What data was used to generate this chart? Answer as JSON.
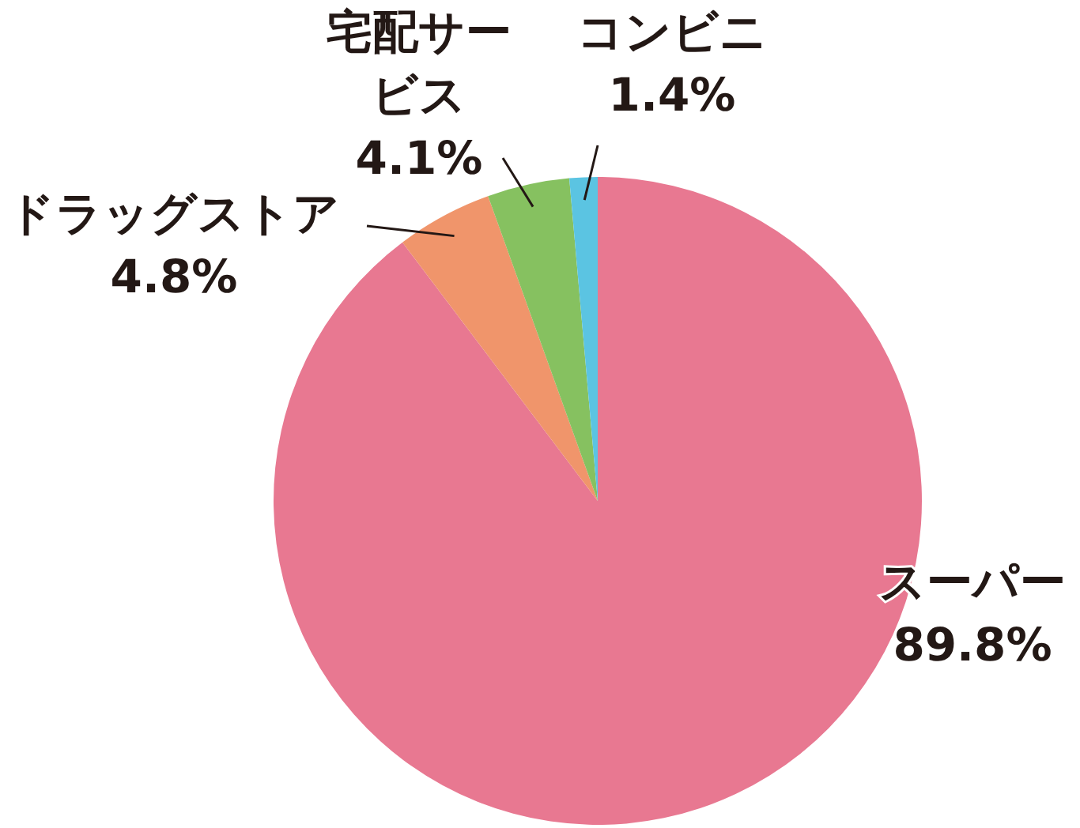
{
  "chart_data": {
    "type": "pie",
    "categories": [
      "スーパー",
      "ドラッグストア",
      "宅配サービス",
      "コンビニ"
    ],
    "values": [
      89.8,
      4.8,
      4.1,
      1.4
    ],
    "value_labels": [
      "89.8%",
      "4.8%",
      "4.1%",
      "1.4%"
    ],
    "colors": [
      "#e87891",
      "#f0956b",
      "#86c160",
      "#5bc4e2"
    ]
  }
}
